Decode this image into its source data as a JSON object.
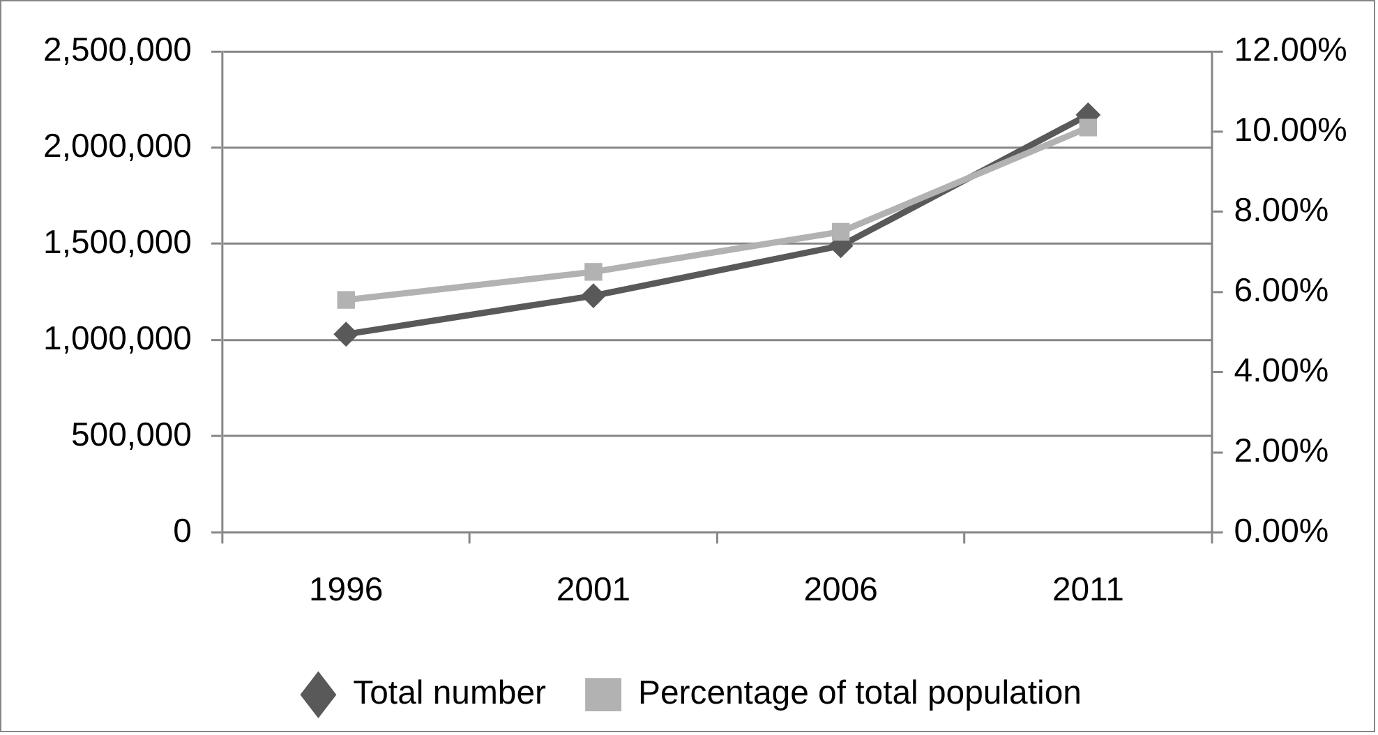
{
  "chart_data": {
    "type": "line",
    "categories": [
      "1996",
      "2001",
      "2006",
      "2011"
    ],
    "series": [
      {
        "name": "Total number",
        "color": "#595959",
        "marker": "diamond",
        "values": [
          1030000,
          1230000,
          1490000,
          2170000
        ]
      },
      {
        "name": "Percentage of total population",
        "color": "#b2b2b2",
        "marker": "square",
        "axis": "y2",
        "values": [
          5.8,
          6.5,
          7.5,
          10.1
        ]
      }
    ],
    "ylim": [
      0,
      2500000
    ],
    "yticks": [
      0,
      {
        "value": 500000,
        "label": "500,000"
      },
      {
        "value": 1000000,
        "label": "1,000,000"
      },
      {
        "value": 1500000,
        "label": "1,500,000"
      },
      {
        "value": 2000000,
        "label": "2,000,000"
      },
      {
        "value": 2500000,
        "label": "2,500,000"
      }
    ],
    "y2lim": [
      0,
      12
    ],
    "y2ticks": [
      {
        "value": 0,
        "label": "0.00%"
      },
      {
        "value": 2,
        "label": "2.00%"
      },
      {
        "value": 4,
        "label": "4.00%"
      },
      {
        "value": 6,
        "label": "6.00%"
      },
      {
        "value": 8,
        "label": "8.00%"
      },
      {
        "value": 10,
        "label": "10.00%"
      },
      {
        "value": 12,
        "label": "12.00%"
      }
    ],
    "grid": "y",
    "legend": "bottom",
    "line_style": "solid"
  }
}
